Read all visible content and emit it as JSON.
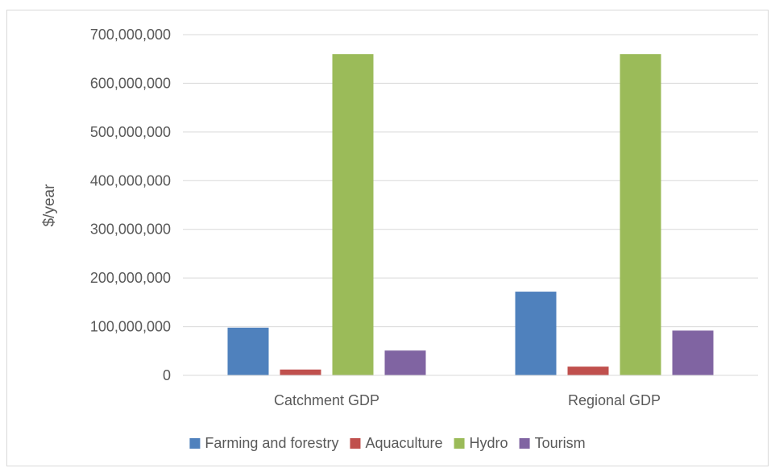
{
  "chart_data": {
    "type": "bar",
    "title": "",
    "xlabel": "",
    "ylabel": "$/year",
    "ylim": [
      0,
      700000000
    ],
    "yticks": [
      0,
      100000000,
      200000000,
      300000000,
      400000000,
      500000000,
      600000000,
      700000000
    ],
    "ytick_labels": [
      "0",
      "100,000,000",
      "200,000,000",
      "300,000,000",
      "400,000,000",
      "500,000,000",
      "600,000,000",
      "700,000,000"
    ],
    "categories": [
      "Catchment GDP",
      "Regional GDP"
    ],
    "series": [
      {
        "name": "Farming and forestry",
        "color": "#4f81bd",
        "values": [
          98000000,
          172000000
        ]
      },
      {
        "name": "Aquaculture",
        "color": "#c0504d",
        "values": [
          12000000,
          18000000
        ]
      },
      {
        "name": "Hydro",
        "color": "#9bbb59",
        "values": [
          660000000,
          660000000
        ]
      },
      {
        "name": "Tourism",
        "color": "#8064a2",
        "values": [
          51000000,
          92000000
        ]
      }
    ],
    "grid": true,
    "legend_position": "bottom"
  }
}
